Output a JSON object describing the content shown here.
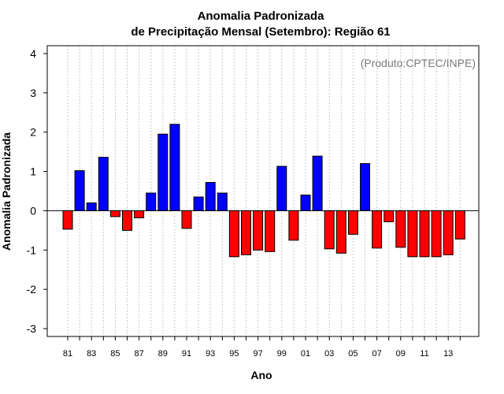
{
  "chart_data": {
    "type": "bar",
    "title": "Anomalia Padronizada",
    "subtitle": "de Precipitação Mensal (Setembro): Região 61",
    "xlabel": "Ano",
    "ylabel": "Anomalia Padronizada",
    "credit": "(Produto:CPTEC/INPE)",
    "ylim": [
      -3.2,
      4.2
    ],
    "yticks": [
      -3,
      -2,
      -1,
      0,
      1,
      2,
      3,
      4
    ],
    "grid": "vertical-dotted",
    "positive_color": "#0000ff",
    "negative_color": "#ff0000",
    "categories": [
      "81",
      "82",
      "83",
      "84",
      "85",
      "86",
      "87",
      "88",
      "89",
      "90",
      "91",
      "92",
      "93",
      "94",
      "95",
      "96",
      "97",
      "98",
      "99",
      "00",
      "01",
      "02",
      "03",
      "04",
      "05",
      "06",
      "07",
      "08",
      "09",
      "10",
      "11",
      "12",
      "13",
      "14"
    ],
    "tick_labels": [
      "81",
      "",
      "83",
      "",
      "85",
      "",
      "87",
      "",
      "89",
      "",
      "91",
      "",
      "93",
      "",
      "95",
      "",
      "97",
      "",
      "99",
      "",
      "01",
      "",
      "03",
      "",
      "05",
      "",
      "07",
      "",
      "09",
      "",
      "11",
      "",
      "13",
      ""
    ],
    "values": [
      -0.47,
      1.02,
      0.2,
      1.36,
      -0.15,
      -0.5,
      -0.18,
      0.45,
      1.95,
      2.2,
      -0.45,
      0.35,
      0.72,
      0.45,
      -1.17,
      -1.12,
      -1.0,
      -1.04,
      1.13,
      -0.75,
      0.4,
      1.39,
      -0.97,
      -1.08,
      -0.6,
      1.2,
      -0.95,
      -0.28,
      -0.93,
      -1.17,
      -1.17,
      -1.17,
      -1.12,
      -0.72
    ]
  }
}
